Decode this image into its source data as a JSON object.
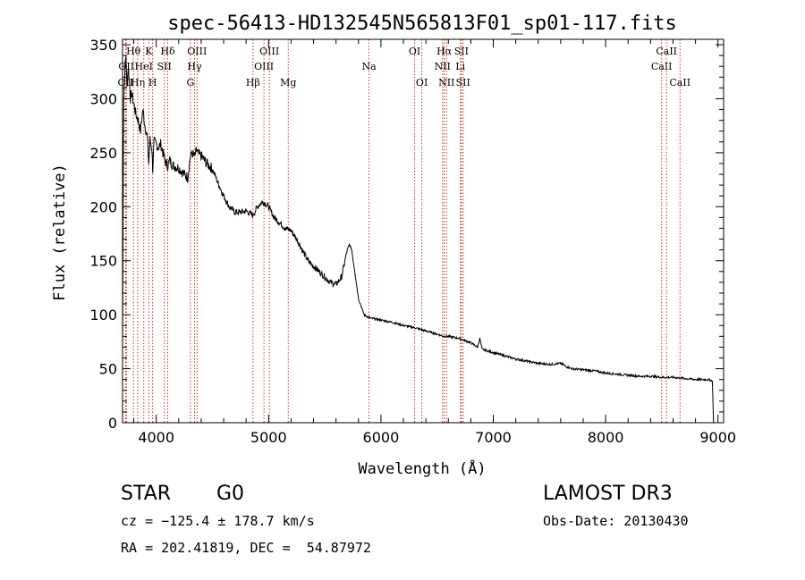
{
  "chart_data": {
    "type": "line",
    "title": "spec-56413-HD132545N565813F01_sp01-117.fits",
    "xlabel": "Wavelength (Å)",
    "ylabel": "Flux (relative)",
    "xlim": [
      3700,
      9050
    ],
    "ylim": [
      0,
      355
    ],
    "xticks": [
      4000,
      5000,
      6000,
      7000,
      8000,
      9000
    ],
    "yticks": [
      0,
      50,
      100,
      150,
      200,
      250,
      300,
      350
    ],
    "series": [
      {
        "name": "flux",
        "x": [
          3700,
          3710,
          3720,
          3730,
          3740,
          3750,
          3760,
          3770,
          3780,
          3800,
          3820,
          3840,
          3860,
          3880,
          3900,
          3920,
          3933,
          3945,
          3960,
          3968,
          3980,
          4000,
          4020,
          4040,
          4060,
          4080,
          4101,
          4120,
          4150,
          4200,
          4250,
          4280,
          4300,
          4320,
          4340,
          4360,
          4380,
          4400,
          4450,
          4500,
          4550,
          4600,
          4650,
          4700,
          4750,
          4800,
          4861,
          4900,
          4950,
          5000,
          5050,
          5100,
          5150,
          5200,
          5250,
          5300,
          5350,
          5400,
          5450,
          5500,
          5550,
          5600,
          5650,
          5680,
          5700,
          5720,
          5740,
          5760,
          5780,
          5800,
          5850,
          5900,
          5950,
          6000,
          6100,
          6200,
          6300,
          6400,
          6500,
          6563,
          6600,
          6700,
          6800,
          6860,
          6880,
          6900,
          7000,
          7100,
          7200,
          7300,
          7400,
          7500,
          7600,
          7650,
          7700,
          7800,
          7900,
          8000,
          8100,
          8200,
          8300,
          8400,
          8500,
          8600,
          8700,
          8800,
          8900,
          8950,
          8960,
          8980
        ],
        "y": [
          70,
          300,
          325,
          340,
          310,
          330,
          318,
          300,
          305,
          295,
          285,
          280,
          270,
          290,
          275,
          265,
          240,
          262,
          255,
          235,
          260,
          258,
          255,
          258,
          250,
          242,
          238,
          243,
          238,
          236,
          230,
          227,
          245,
          250,
          246,
          252,
          248,
          247,
          240,
          235,
          222,
          210,
          200,
          195,
          195,
          196,
          192,
          200,
          205,
          200,
          190,
          185,
          180,
          178,
          170,
          160,
          150,
          145,
          140,
          135,
          130,
          128,
          135,
          150,
          160,
          165,
          160,
          145,
          130,
          115,
          100,
          97,
          96,
          95,
          93,
          90,
          88,
          85,
          82,
          80,
          80,
          78,
          74,
          70,
          78,
          68,
          65,
          62,
          59,
          57,
          55,
          54,
          55,
          52,
          50,
          49,
          48,
          46,
          45,
          44,
          43,
          43,
          42,
          42,
          41,
          40,
          40,
          39,
          0,
          0
        ]
      }
    ],
    "lines": [
      {
        "x": 3727,
        "label": "OII",
        "row": 3
      },
      {
        "x": 3734,
        "label": "OII",
        "row": 2
      },
      {
        "x": 3797,
        "label": "Hθ",
        "row": 1
      },
      {
        "x": 3835,
        "label": "Hη",
        "row": 3
      },
      {
        "x": 3889,
        "label": "HeI",
        "row": 2
      },
      {
        "x": 3934,
        "label": "K",
        "row": 1
      },
      {
        "x": 3968,
        "label": "H",
        "row": 3
      },
      {
        "x": 4072,
        "label": "SII",
        "row": 2
      },
      {
        "x": 4102,
        "label": "Hδ",
        "row": 1
      },
      {
        "x": 4304,
        "label": "G",
        "row": 3
      },
      {
        "x": 4341,
        "label": "Hγ",
        "row": 2
      },
      {
        "x": 4363,
        "label": "OIII",
        "row": 1
      },
      {
        "x": 4861,
        "label": "Hβ",
        "row": 3
      },
      {
        "x": 4959,
        "label": "OIII",
        "row": 2
      },
      {
        "x": 5007,
        "label": "OIII",
        "row": 1
      },
      {
        "x": 5175,
        "label": "Mg",
        "row": 3
      },
      {
        "x": 5894,
        "label": "Na",
        "row": 2
      },
      {
        "x": 6300,
        "label": "OI",
        "row": 1
      },
      {
        "x": 6364,
        "label": "OI",
        "row": 3
      },
      {
        "x": 6548,
        "label": "NII",
        "row": 2
      },
      {
        "x": 6563,
        "label": "Hα",
        "row": 1
      },
      {
        "x": 6584,
        "label": "NII",
        "row": 3
      },
      {
        "x": 6707,
        "label": "Li",
        "row": 2
      },
      {
        "x": 6716,
        "label": "SII",
        "row": 1
      },
      {
        "x": 6731,
        "label": "SII",
        "row": 3
      },
      {
        "x": 8498,
        "label": "CaII",
        "row": 2
      },
      {
        "x": 8542,
        "label": "CaII",
        "row": 1
      },
      {
        "x": 8662,
        "label": "CaII",
        "row": 3
      }
    ]
  },
  "info": {
    "class": "STAR",
    "subclass": "G0",
    "survey": "LAMOST DR3",
    "redshift": "cz = −125.4 ± 178.7 km/s",
    "obs_date": "Obs-Date: 20130430",
    "coords": "RA = 202.41819, DEC =  54.87972"
  }
}
